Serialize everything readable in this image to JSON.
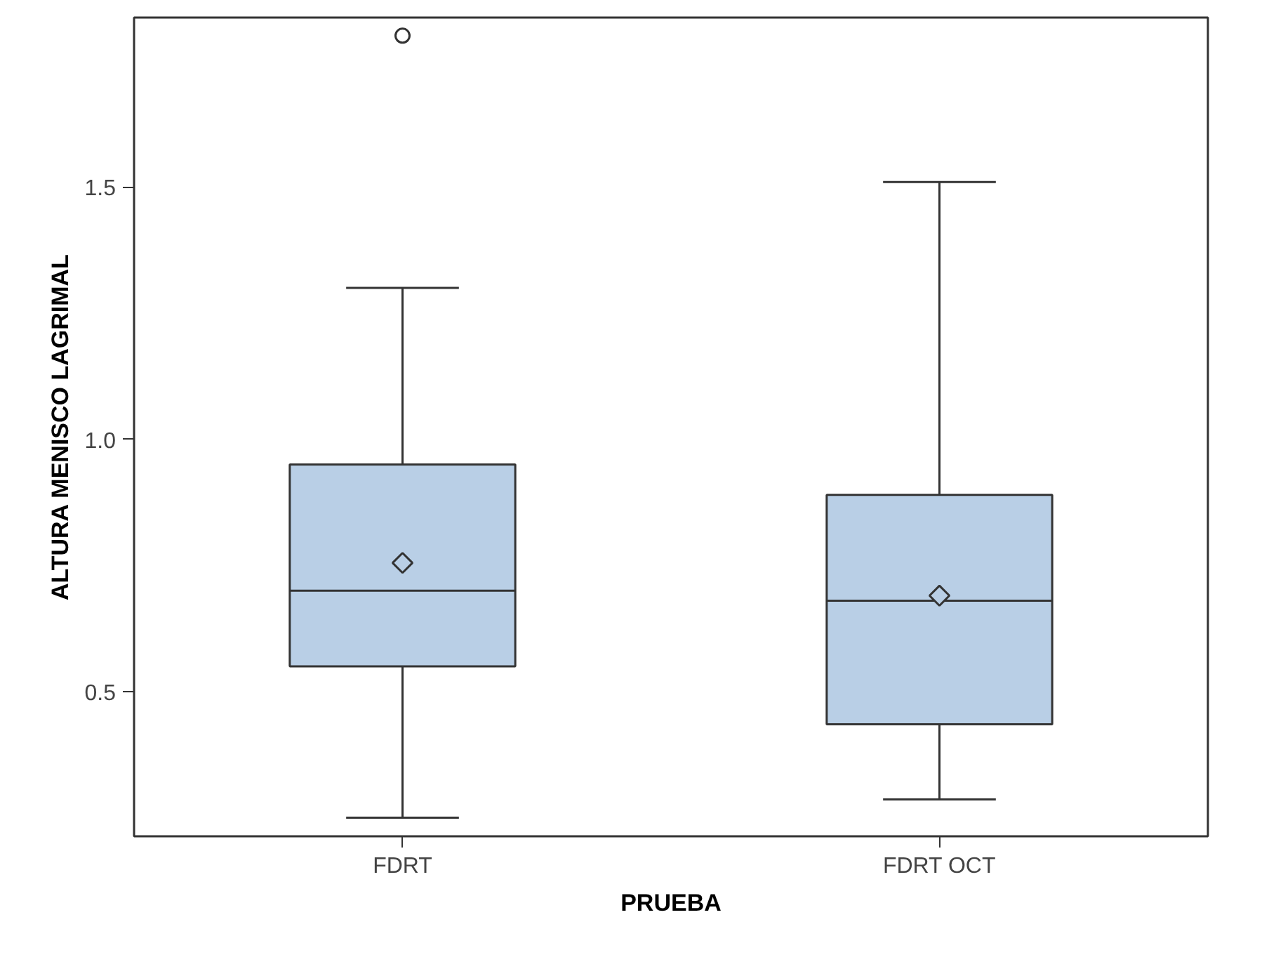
{
  "chart_data": {
    "type": "box",
    "xlabel": "PRUEBA",
    "ylabel": "ALTURA MENISCO LAGRIMAL",
    "categories": [
      "FDRT",
      "FDRT OCT"
    ],
    "boxes": [
      {
        "low": 0.25,
        "q1": 0.55,
        "median": 0.7,
        "q3": 0.95,
        "high": 1.3,
        "mean": 0.755,
        "outliers": [
          1.8
        ]
      },
      {
        "low": 0.286,
        "q1": 0.435,
        "median": 0.68,
        "q3": 0.89,
        "high": 1.51,
        "mean": 0.69
      }
    ],
    "color": "#b9cfe6",
    "ylim": [
      0.213,
      1.836
    ],
    "yticks": [
      {
        "value": 0.5,
        "label": "0.5"
      },
      {
        "value": 1.0,
        "label": "1.0"
      },
      {
        "value": 1.5,
        "label": "1.5"
      }
    ],
    "grid": false
  }
}
